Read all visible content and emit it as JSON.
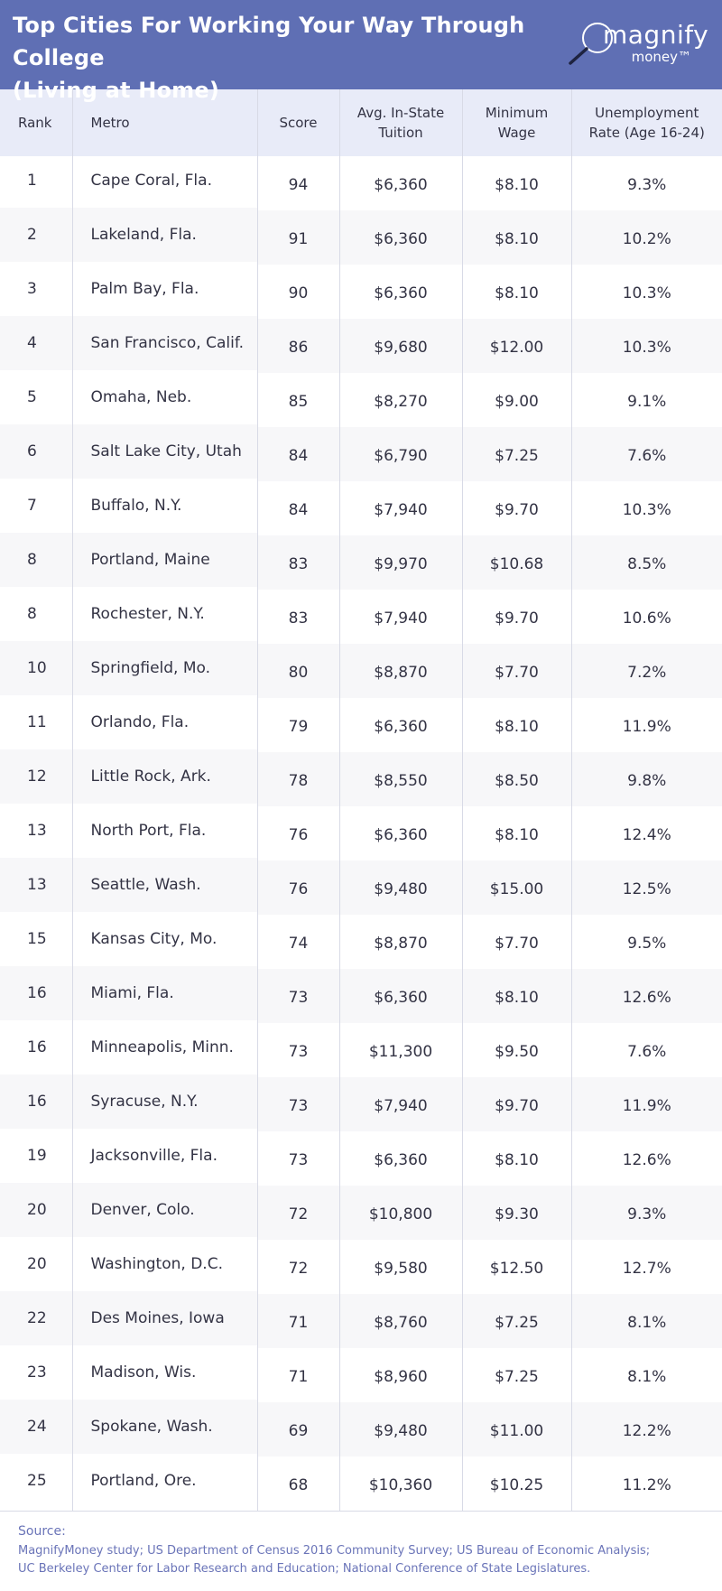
{
  "header": {
    "title_line1": "Top Cities For Working Your Way Through College",
    "title_line2": "(Living at Home)",
    "logo_main": "magnify",
    "logo_sub": "money™",
    "background_color": "#5f6fb4"
  },
  "table": {
    "columns": {
      "rank": "Rank",
      "metro": "Metro",
      "score": "Score",
      "tuition_line1": "Avg. In-State",
      "tuition_line2": "Tuition",
      "wage_line1": "Minimum",
      "wage_line2": "Wage",
      "unemp_line1": "Unemployment",
      "unemp_line2": "Rate (Age 16-24)"
    },
    "rows": [
      {
        "rank": "1",
        "metro": "Cape Coral, Fla.",
        "score": "94",
        "tuition": "$6,360",
        "wage": "$8.10",
        "unemp": "9.3%"
      },
      {
        "rank": "2",
        "metro": "Lakeland, Fla.",
        "score": "91",
        "tuition": "$6,360",
        "wage": "$8.10",
        "unemp": "10.2%"
      },
      {
        "rank": "3",
        "metro": "Palm Bay, Fla.",
        "score": "90",
        "tuition": "$6,360",
        "wage": "$8.10",
        "unemp": "10.3%"
      },
      {
        "rank": "4",
        "metro": "San Francisco, Calif.",
        "score": "86",
        "tuition": "$9,680",
        "wage": "$12.00",
        "unemp": "10.3%"
      },
      {
        "rank": "5",
        "metro": "Omaha, Neb.",
        "score": "85",
        "tuition": "$8,270",
        "wage": "$9.00",
        "unemp": "9.1%"
      },
      {
        "rank": "6",
        "metro": "Salt Lake City, Utah",
        "score": "84",
        "tuition": "$6,790",
        "wage": "$7.25",
        "unemp": "7.6%"
      },
      {
        "rank": "7",
        "metro": "Buffalo, N.Y.",
        "score": "84",
        "tuition": "$7,940",
        "wage": "$9.70",
        "unemp": "10.3%"
      },
      {
        "rank": "8",
        "metro": "Portland, Maine",
        "score": "83",
        "tuition": "$9,970",
        "wage": "$10.68",
        "unemp": "8.5%"
      },
      {
        "rank": "8",
        "metro": "Rochester, N.Y.",
        "score": "83",
        "tuition": "$7,940",
        "wage": "$9.70",
        "unemp": "10.6%"
      },
      {
        "rank": "10",
        "metro": "Springfield, Mo.",
        "score": "80",
        "tuition": "$8,870",
        "wage": "$7.70",
        "unemp": "7.2%"
      },
      {
        "rank": "11",
        "metro": "Orlando, Fla.",
        "score": "79",
        "tuition": "$6,360",
        "wage": "$8.10",
        "unemp": "11.9%"
      },
      {
        "rank": "12",
        "metro": "Little Rock, Ark.",
        "score": "78",
        "tuition": "$8,550",
        "wage": "$8.50",
        "unemp": "9.8%"
      },
      {
        "rank": "13",
        "metro": "North Port, Fla.",
        "score": "76",
        "tuition": "$6,360",
        "wage": "$8.10",
        "unemp": "12.4%"
      },
      {
        "rank": "13",
        "metro": "Seattle, Wash.",
        "score": "76",
        "tuition": "$9,480",
        "wage": "$15.00",
        "unemp": "12.5%"
      },
      {
        "rank": "15",
        "metro": "Kansas City, Mo.",
        "score": "74",
        "tuition": "$8,870",
        "wage": "$7.70",
        "unemp": "9.5%"
      },
      {
        "rank": "16",
        "metro": "Miami, Fla.",
        "score": "73",
        "tuition": "$6,360",
        "wage": "$8.10",
        "unemp": "12.6%"
      },
      {
        "rank": "16",
        "metro": "Minneapolis, Minn.",
        "score": "73",
        "tuition": "$11,300",
        "wage": "$9.50",
        "unemp": "7.6%"
      },
      {
        "rank": "16",
        "metro": "Syracuse, N.Y.",
        "score": "73",
        "tuition": "$7,940",
        "wage": "$9.70",
        "unemp": "11.9%"
      },
      {
        "rank": "19",
        "metro": "Jacksonville, Fla.",
        "score": "73",
        "tuition": "$6,360",
        "wage": "$8.10",
        "unemp": "12.6%"
      },
      {
        "rank": "20",
        "metro": "Denver, Colo.",
        "score": "72",
        "tuition": "$10,800",
        "wage": "$9.30",
        "unemp": "9.3%"
      },
      {
        "rank": "20",
        "metro": "Washington, D.C.",
        "score": "72",
        "tuition": "$9,580",
        "wage": "$12.50",
        "unemp": "12.7%"
      },
      {
        "rank": "22",
        "metro": "Des Moines, Iowa",
        "score": "71",
        "tuition": "$8,760",
        "wage": "$7.25",
        "unemp": "8.1%"
      },
      {
        "rank": "23",
        "metro": "Madison, Wis.",
        "score": "71",
        "tuition": "$8,960",
        "wage": "$7.25",
        "unemp": "8.1%"
      },
      {
        "rank": "24",
        "metro": "Spokane, Wash.",
        "score": "69",
        "tuition": "$9,480",
        "wage": "$11.00",
        "unemp": "12.2%"
      },
      {
        "rank": "25",
        "metro": "Portland, Ore.",
        "score": "68",
        "tuition": "$10,360",
        "wage": "$10.25",
        "unemp": "11.2%"
      }
    ]
  },
  "source": {
    "label": "Source:",
    "line1": "MagnifyMoney study; US Department of Census 2016 Community Survey; US Bureau of Economic Analysis;",
    "line2": "UC Berkeley Center for Labor Research and Education; National Conference of State Legislatures."
  }
}
